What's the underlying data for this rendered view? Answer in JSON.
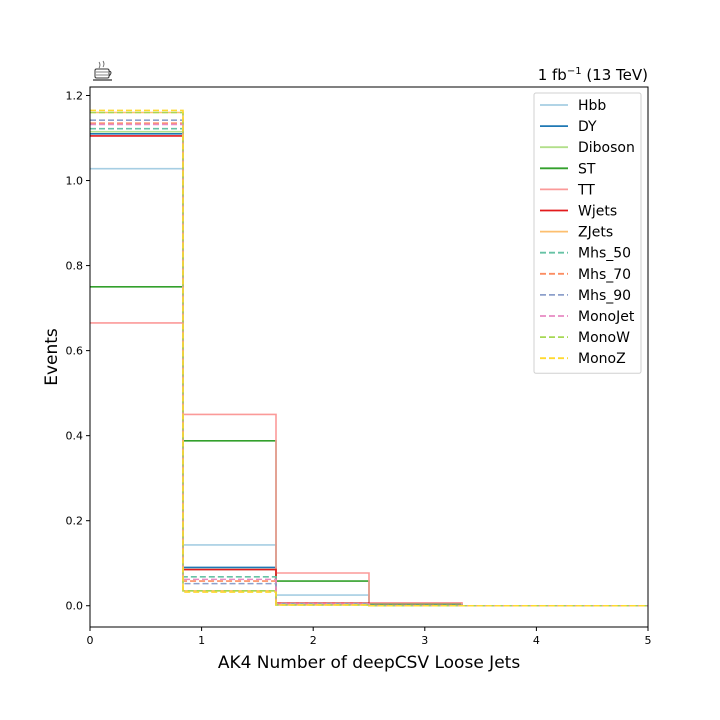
{
  "chart_data": {
    "type": "line",
    "style": "step-histogram",
    "xlabel": "AK4 Number of deepCSV Loose Jets",
    "ylabel": "Events",
    "lumi_text": {
      "value": "1 fb",
      "exponent": "−1",
      "energy": " (13 TeV)"
    },
    "logo_icon": "coffee-cup-icon",
    "xlim": [
      0,
      5
    ],
    "ylim": [
      -0.05,
      1.22
    ],
    "xticks": [
      "0",
      "1",
      "2",
      "3",
      "4",
      "5"
    ],
    "yticks": [
      "0.0",
      "0.2",
      "0.4",
      "0.6",
      "0.8",
      "1.0",
      "1.2"
    ],
    "bin_edges": [
      0,
      0.8333,
      1.6667,
      2.5,
      3.3333,
      4.1667,
      5.0
    ],
    "legend_position": "upper-right",
    "series": [
      {
        "name": "Hbb",
        "color": "#a6cee3",
        "dashed": false,
        "values": [
          1.028,
          0.143,
          0.025,
          0.003,
          0.0,
          0.0
        ]
      },
      {
        "name": "DY",
        "color": "#1f78b4",
        "dashed": false,
        "values": [
          1.11,
          0.09,
          0.005,
          0.001,
          0.0,
          0.0
        ]
      },
      {
        "name": "Diboson",
        "color": "#b2df8a",
        "dashed": false,
        "values": [
          1.115,
          0.085,
          0.005,
          0.001,
          0.0,
          0.0
        ]
      },
      {
        "name": "ST",
        "color": "#33a02c",
        "dashed": false,
        "values": [
          0.75,
          0.388,
          0.058,
          0.004,
          0.0,
          0.0
        ]
      },
      {
        "name": "TT",
        "color": "#fb9a99",
        "dashed": false,
        "values": [
          0.665,
          0.45,
          0.077,
          0.007,
          0.0,
          0.0
        ]
      },
      {
        "name": "Wjets",
        "color": "#e31a1c",
        "dashed": false,
        "values": [
          1.105,
          0.085,
          0.006,
          0.001,
          0.0,
          0.0
        ]
      },
      {
        "name": "ZJets",
        "color": "#fdbf6f",
        "dashed": false,
        "values": [
          1.16,
          0.035,
          0.002,
          0.0,
          0.0,
          0.0
        ]
      },
      {
        "name": "Mhs_50",
        "color": "#66c2a5",
        "dashed": true,
        "values": [
          1.122,
          0.068,
          0.005,
          0.001,
          0.0,
          0.0
        ]
      },
      {
        "name": "Mhs_70",
        "color": "#fc8d62",
        "dashed": true,
        "values": [
          1.135,
          0.058,
          0.004,
          0.001,
          0.0,
          0.0
        ]
      },
      {
        "name": "Mhs_90",
        "color": "#8da0cb",
        "dashed": true,
        "values": [
          1.142,
          0.052,
          0.004,
          0.001,
          0.0,
          0.0
        ]
      },
      {
        "name": "MonoJet",
        "color": "#e78ac3",
        "dashed": true,
        "values": [
          1.132,
          0.062,
          0.004,
          0.001,
          0.0,
          0.0
        ]
      },
      {
        "name": "MonoW",
        "color": "#a6d854",
        "dashed": true,
        "values": [
          1.16,
          0.035,
          0.002,
          0.0,
          0.0,
          0.0
        ]
      },
      {
        "name": "MonoZ",
        "color": "#ffd92f",
        "dashed": true,
        "values": [
          1.165,
          0.032,
          0.002,
          0.0,
          0.0,
          0.0
        ]
      }
    ]
  }
}
